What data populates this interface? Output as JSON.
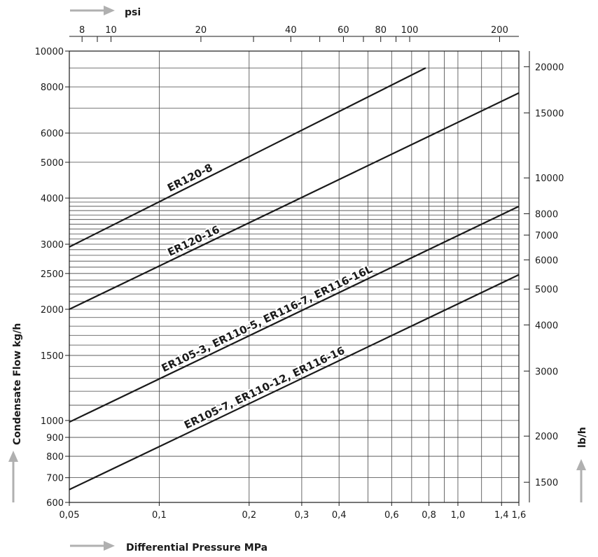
{
  "chart_data": {
    "type": "line",
    "x_scale": "log",
    "y_scale": "log",
    "grid": true,
    "xlabel": "Differential Pressure MPa",
    "ylabel": "Condensate Flow kg/h",
    "x2label": "psi",
    "y2label": "lb/h",
    "xlim": [
      0.05,
      1.6
    ],
    "ylim": [
      600,
      10000
    ],
    "x_ticks": [
      {
        "value": 0.05,
        "label": "0,05"
      },
      {
        "value": 0.1,
        "label": "0,1"
      },
      {
        "value": 0.2,
        "label": "0,2"
      },
      {
        "value": 0.3,
        "label": "0,3"
      },
      {
        "value": 0.4,
        "label": "0,4"
      },
      {
        "value": 0.6,
        "label": "0,6"
      },
      {
        "value": 0.8,
        "label": "0,8"
      },
      {
        "value": 1.0,
        "label": "1,0"
      },
      {
        "value": 1.4,
        "label": "1,4"
      },
      {
        "value": 1.6,
        "label": "1,6"
      }
    ],
    "x_grid": [
      0.1,
      0.2,
      0.3,
      0.4,
      0.5,
      0.6,
      0.7,
      0.8,
      0.9,
      1.0,
      1.2,
      1.4,
      1.6
    ],
    "y_ticks": [
      {
        "value": 600,
        "label": "600"
      },
      {
        "value": 700,
        "label": "700"
      },
      {
        "value": 800,
        "label": "800"
      },
      {
        "value": 900,
        "label": "900"
      },
      {
        "value": 1000,
        "label": "1000"
      },
      {
        "value": 1500,
        "label": "1500"
      },
      {
        "value": 2000,
        "label": "2000"
      },
      {
        "value": 2500,
        "label": "2500"
      },
      {
        "value": 3000,
        "label": "3000"
      },
      {
        "value": 4000,
        "label": "4000"
      },
      {
        "value": 5000,
        "label": "5000"
      },
      {
        "value": 6000,
        "label": "6000"
      },
      {
        "value": 8000,
        "label": "8000"
      },
      {
        "value": 10000,
        "label": "10000"
      }
    ],
    "y_grid": [
      700,
      800,
      900,
      1000,
      1100,
      1200,
      1300,
      1400,
      1500,
      1600,
      1700,
      1800,
      1900,
      2000,
      2100,
      2200,
      2300,
      2400,
      2500,
      2600,
      2700,
      2800,
      2900,
      3000,
      3100,
      3200,
      3300,
      3400,
      3500,
      3600,
      3700,
      3800,
      3900,
      4000,
      5000,
      6000,
      7000,
      8000,
      9000,
      10000
    ],
    "psi_ticks": [
      {
        "value": 8,
        "label": "8"
      },
      {
        "value": 10,
        "label": "10"
      },
      {
        "value": 20,
        "label": "20"
      },
      {
        "value": 40,
        "label": "40"
      },
      {
        "value": 60,
        "label": "60"
      },
      {
        "value": 80,
        "label": "80"
      },
      {
        "value": 100,
        "label": "100"
      },
      {
        "value": 200,
        "label": "200"
      }
    ],
    "psi_minor": [
      9,
      30,
      50,
      70,
      90
    ],
    "lbh_ticks": [
      {
        "value": 1500,
        "label": "1500"
      },
      {
        "value": 2000,
        "label": "2000"
      },
      {
        "value": 3000,
        "label": "3000"
      },
      {
        "value": 4000,
        "label": "4000"
      },
      {
        "value": 5000,
        "label": "5000"
      },
      {
        "value": 6000,
        "label": "6000"
      },
      {
        "value": 7000,
        "label": "7000"
      },
      {
        "value": 8000,
        "label": "8000"
      },
      {
        "value": 10000,
        "label": "10000"
      },
      {
        "value": 15000,
        "label": "15000"
      },
      {
        "value": 20000,
        "label": "20000"
      }
    ],
    "series": [
      {
        "name": "ER120-8",
        "x": [
          0.05,
          0.78
        ],
        "y": [
          2950,
          9000
        ],
        "label_at": 0.11
      },
      {
        "name": "ER120-16",
        "x": [
          0.05,
          1.6
        ],
        "y": [
          2000,
          7700
        ],
        "label_at": 0.11
      },
      {
        "name": "ER105-3, ER110-5, ER116-7, ER116-16L",
        "x": [
          0.05,
          1.6
        ],
        "y": [
          990,
          3800
        ],
        "label_at": 0.105
      },
      {
        "name": "ER105-7, ER110-12, ER116-16",
        "x": [
          0.05,
          1.6
        ],
        "y": [
          650,
          2480
        ],
        "label_at": 0.125
      }
    ],
    "colors": {
      "line": "#1a1a1a",
      "grid": "#444444",
      "arrow": "#b0b0b0"
    }
  }
}
